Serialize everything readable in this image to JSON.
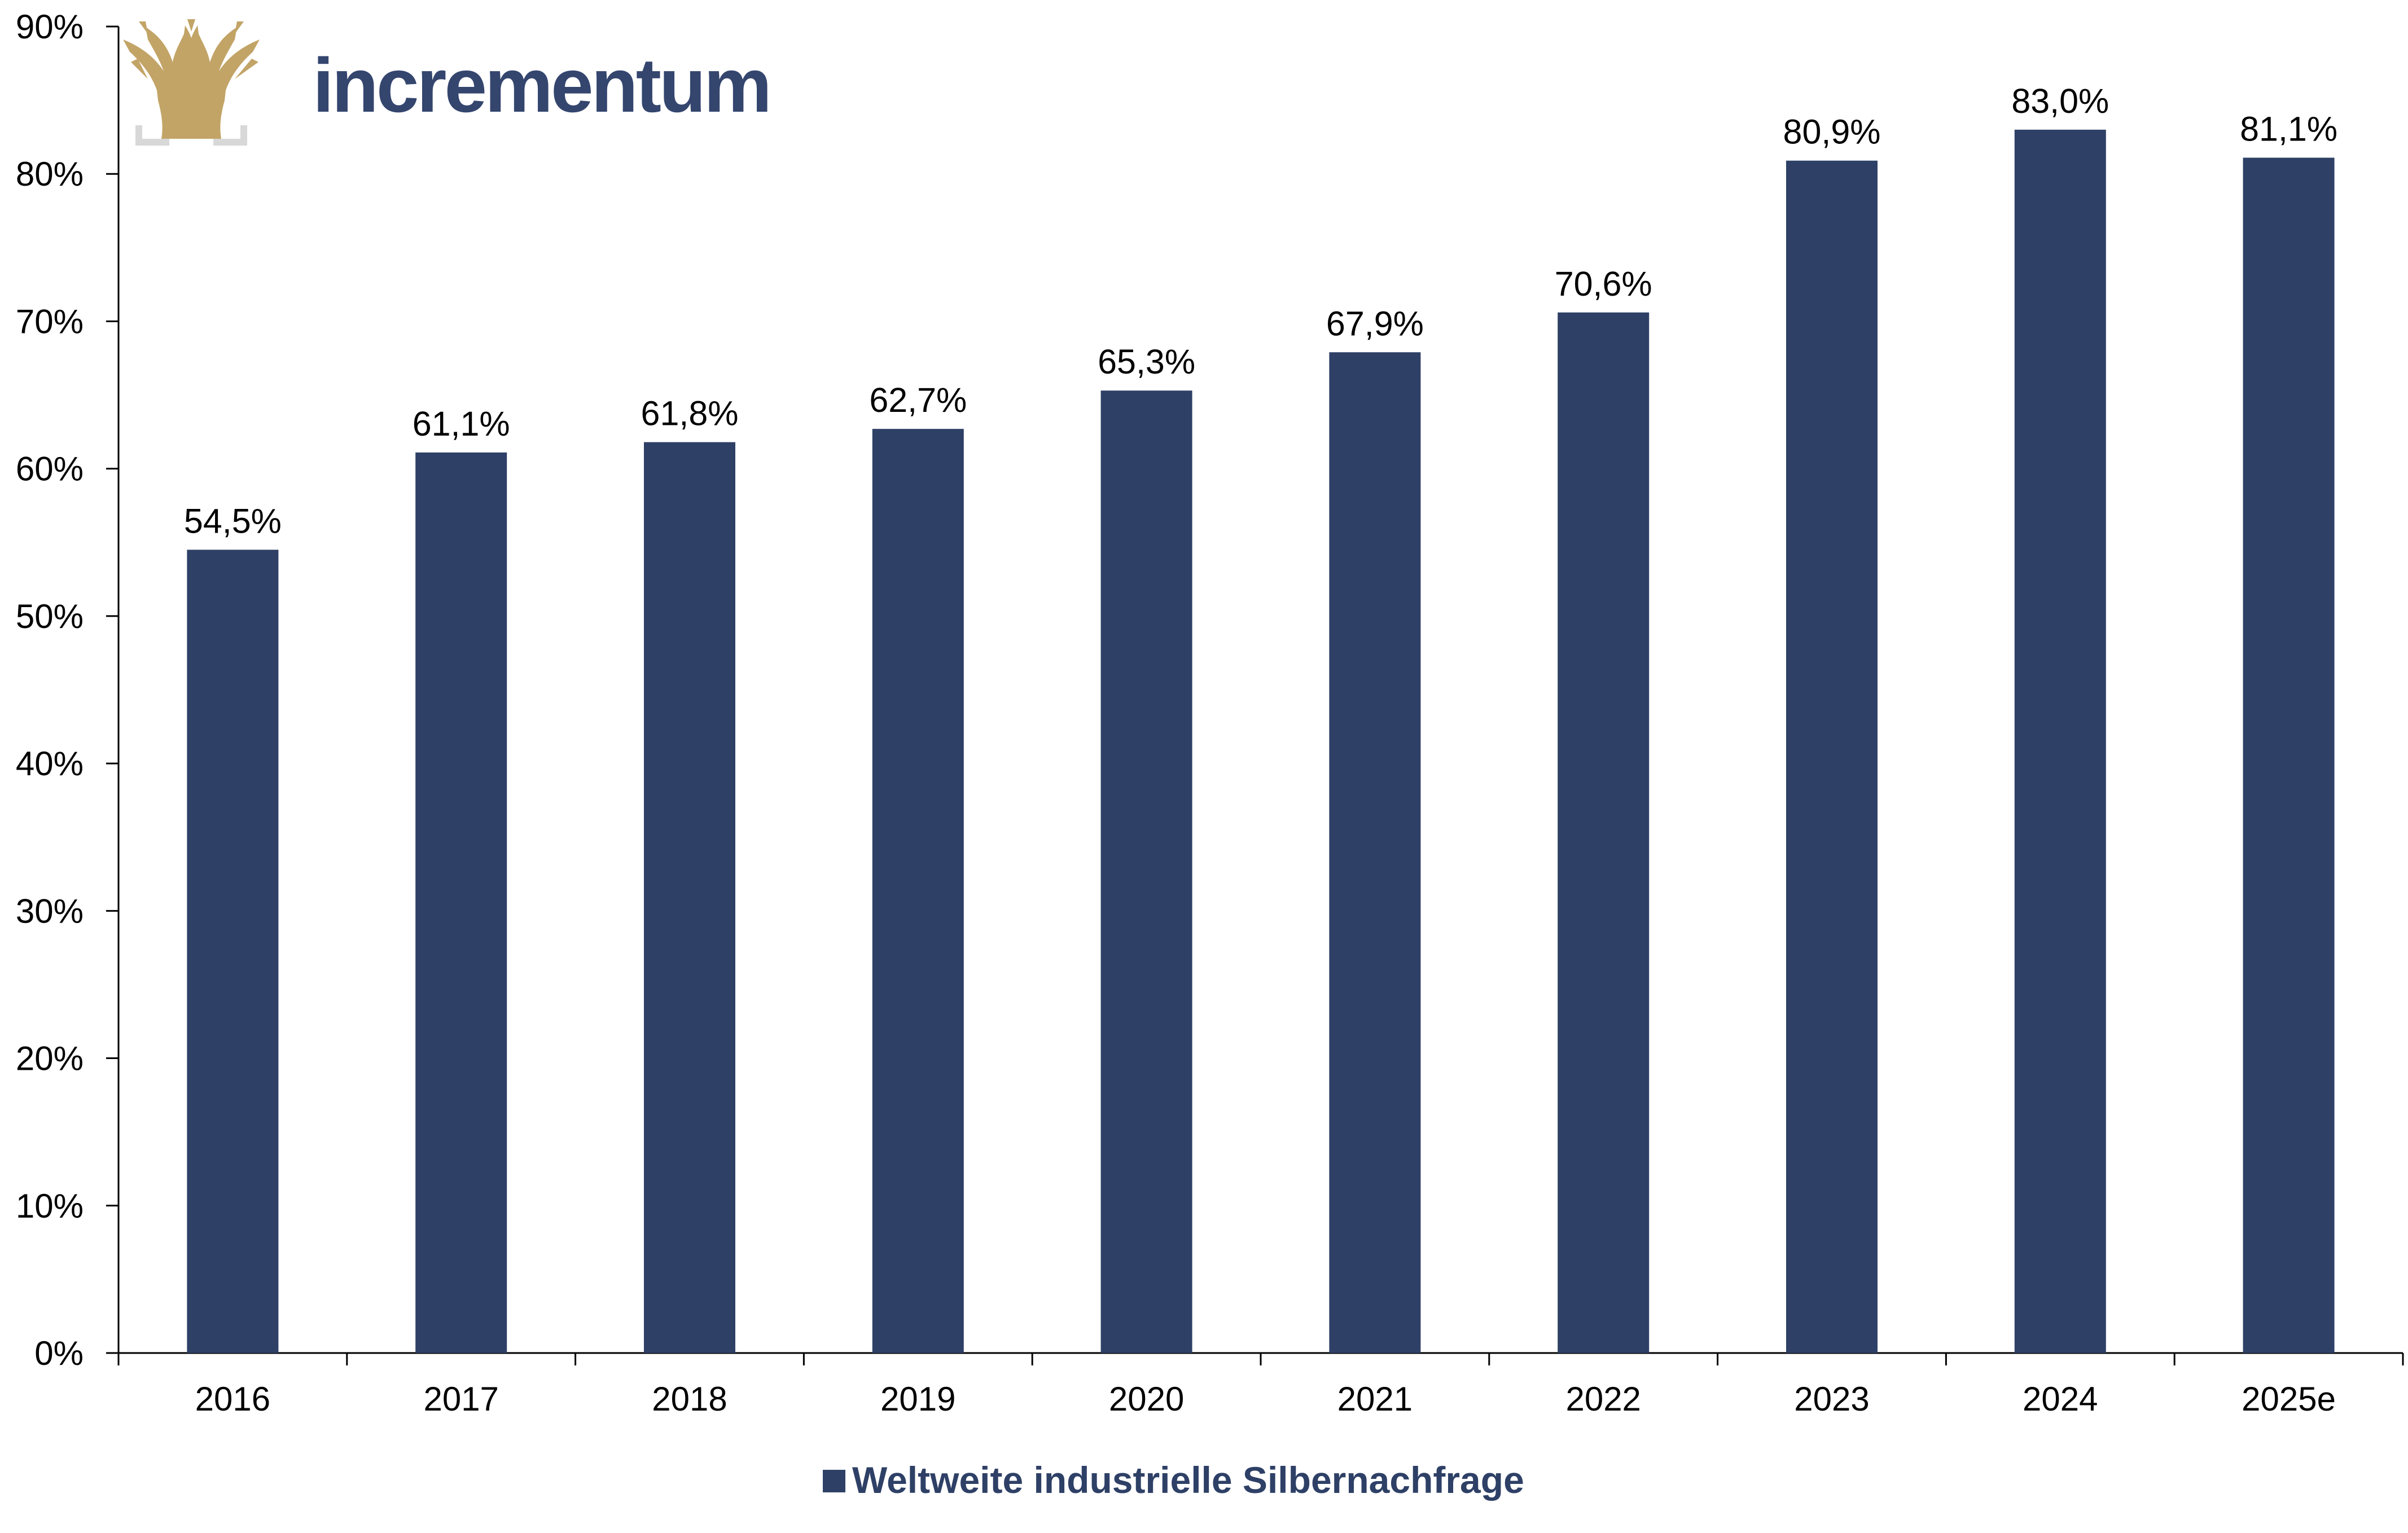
{
  "brand": {
    "name": "incrementum",
    "text_color": "#34456e",
    "tree_color": "#c2a467",
    "bracket_color": "#d8d8d8"
  },
  "chart_data": {
    "type": "bar",
    "categories": [
      "2016",
      "2017",
      "2018",
      "2019",
      "2020",
      "2021",
      "2022",
      "2023",
      "2024",
      "2025e"
    ],
    "series": [
      {
        "name": "Weltweite industrielle Silbernachfrage",
        "values": [
          54.5,
          61.1,
          61.8,
          62.7,
          65.3,
          67.9,
          70.6,
          80.9,
          83.0,
          81.1
        ],
        "labels": [
          "54,5%",
          "61,1%",
          "61,8%",
          "62,7%",
          "65,3%",
          "67,9%",
          "70,6%",
          "80,9%",
          "83,0%",
          "81,1%"
        ],
        "color": "#2e4066"
      }
    ],
    "title": "",
    "xlabel": "",
    "ylabel": "",
    "ylim": [
      0,
      90
    ],
    "yticks": [
      0,
      10,
      20,
      30,
      40,
      50,
      60,
      70,
      80,
      90
    ],
    "ytick_labels": [
      "0%",
      "10%",
      "20%",
      "30%",
      "40%",
      "50%",
      "60%",
      "70%",
      "80%",
      "90%"
    ],
    "grid": false,
    "legend": "bottom-center"
  }
}
